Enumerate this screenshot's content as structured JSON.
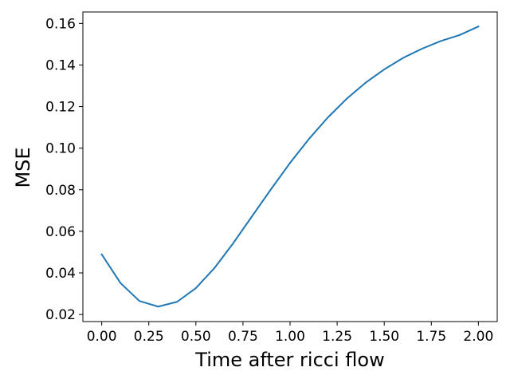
{
  "chart_data": {
    "type": "line",
    "title": "",
    "xlabel": "Time after ricci flow",
    "ylabel": "MSE",
    "xlim": [
      -0.1,
      2.1
    ],
    "ylim": [
      0.0166,
      0.1655
    ],
    "xticks": [
      0.0,
      0.25,
      0.5,
      0.75,
      1.0,
      1.25,
      1.5,
      1.75,
      2.0
    ],
    "xtick_labels": [
      "0.00",
      "0.25",
      "0.50",
      "0.75",
      "1.00",
      "1.25",
      "1.50",
      "1.75",
      "2.00"
    ],
    "yticks": [
      0.02,
      0.04,
      0.06,
      0.08,
      0.1,
      0.12,
      0.14,
      0.16
    ],
    "ytick_labels": [
      "0.02",
      "0.04",
      "0.06",
      "0.08",
      "0.10",
      "0.12",
      "0.14",
      "0.16"
    ],
    "grid": false,
    "legend": "none",
    "series": [
      {
        "color": "#1f77b4",
        "x": [
          0.0,
          0.1,
          0.2,
          0.3,
          0.4,
          0.5,
          0.6,
          0.7,
          0.8,
          0.9,
          1.0,
          1.1,
          1.2,
          1.3,
          1.4,
          1.5,
          1.6,
          1.7,
          1.8,
          1.9,
          2.0
        ],
        "y": [
          0.0489,
          0.0351,
          0.0265,
          0.0238,
          0.0261,
          0.0327,
          0.0425,
          0.0545,
          0.0675,
          0.0804,
          0.0929,
          0.1044,
          0.1147,
          0.1237,
          0.1314,
          0.1379,
          0.1434,
          0.1478,
          0.1515,
          0.1544,
          0.1585
        ]
      }
    ]
  }
}
